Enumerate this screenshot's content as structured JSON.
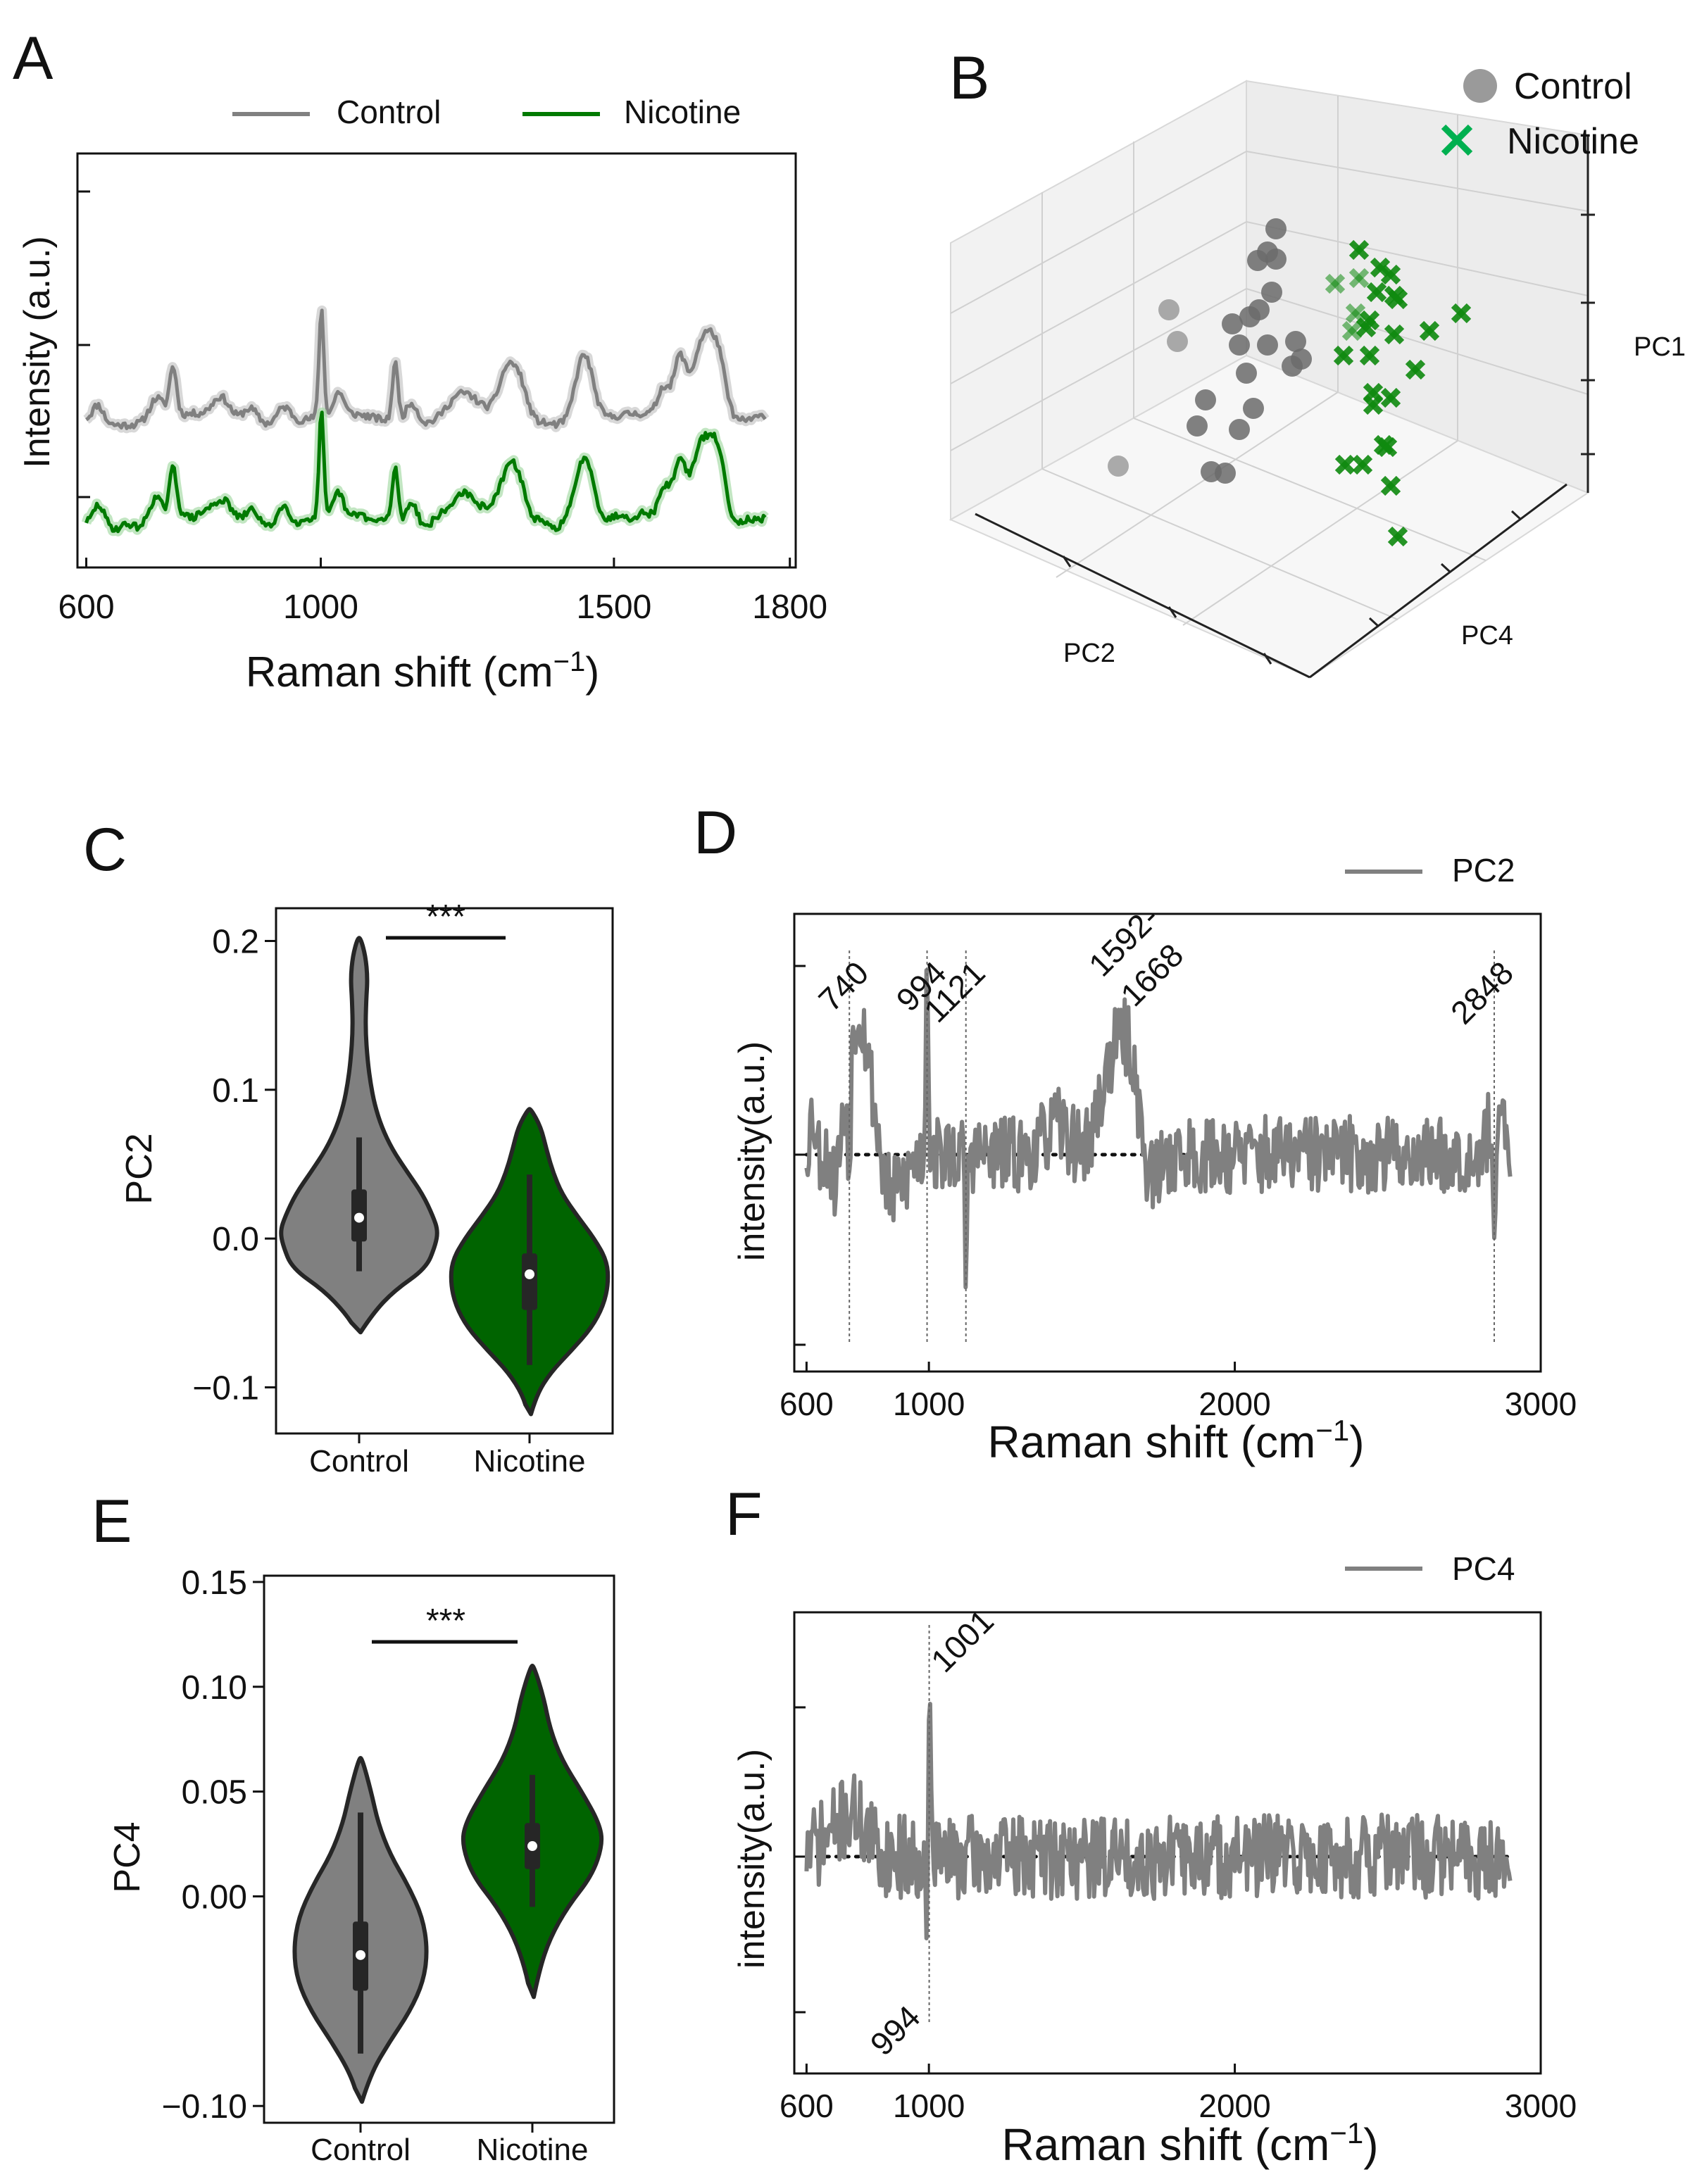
{
  "panel_labels": {
    "a": "A",
    "b": "B",
    "c": "C",
    "d": "D",
    "e": "E",
    "f": "F"
  },
  "colors": {
    "control": "#808080",
    "control_light": "#c8c8c8",
    "nicotine": "#007a00",
    "nicotine_light": "#a8dca8",
    "scatter_control": "#6b6b6b",
    "scatter_nicotine": "#0f8a0f",
    "legend_x": "#00b050",
    "violin_control": "#808080",
    "violin_nicotine": "#006400",
    "loading": "#808080"
  },
  "chart_data": [
    {
      "id": "A",
      "type": "line",
      "title": "",
      "xlabel": "Raman shift (cm",
      "xlabel_sup": "−1",
      "xlabel_close": ")",
      "ylabel": "Intensity (a.u.)",
      "xlim": [
        585,
        1810
      ],
      "xticks": [
        {
          "pos": 600,
          "label": "600"
        },
        {
          "pos": 1000,
          "label": "1000"
        },
        {
          "pos": 1500,
          "label": "1500"
        },
        {
          "pos": 1800,
          "label": "1800"
        }
      ],
      "peaks": [
        [
          620,
          0.35,
          9
        ],
        [
          720,
          0.45,
          12
        ],
        [
          748,
          1.0,
          6
        ],
        [
          830,
          0.4,
          14
        ],
        [
          880,
          0.3,
          12
        ],
        [
          937,
          0.35,
          12
        ],
        [
          1001,
          2.2,
          4
        ],
        [
          1031,
          0.45,
          8
        ],
        [
          1127,
          1.2,
          5
        ],
        [
          1155,
          0.45,
          10
        ],
        [
          1240,
          0.5,
          25
        ],
        [
          1318,
          0.9,
          14
        ],
        [
          1340,
          0.6,
          12
        ],
        [
          1449,
          1.4,
          15
        ],
        [
          1585,
          0.6,
          10
        ],
        [
          1612,
          1.15,
          10
        ],
        [
          1655,
          1.8,
          20
        ],
        [
          1680,
          0.7,
          12
        ]
      ],
      "legend": [
        {
          "label": "Control",
          "color": "#808080"
        },
        {
          "label": "Nicotine",
          "color": "#007a00"
        }
      ],
      "series": [
        {
          "name": "Control",
          "baseline": 0.82,
          "scale": 0.42,
          "seed": 11
        },
        {
          "name": "Nicotine",
          "baseline": -0.05,
          "scale": 0.42,
          "seed": 29
        }
      ]
    },
    {
      "id": "B",
      "type": "scatter",
      "title": "",
      "zlabel": "PC1",
      "xlabel": "PC2",
      "ylabel": "PC4",
      "legend": [
        {
          "label": "Control",
          "marker": "circle"
        },
        {
          "label": "Nicotine",
          "marker": "x"
        }
      ],
      "series": [
        {
          "name": "Control",
          "points": [
            [
              1812,
              325
            ],
            [
              1800,
              358
            ],
            [
              1786,
              370
            ],
            [
              1812,
              368
            ],
            [
              1660,
              440
            ],
            [
              1750,
              460
            ],
            [
              1788,
              440
            ],
            [
              1806,
              415
            ],
            [
              1760,
              490
            ],
            [
              1800,
              490
            ],
            [
              1672,
              485
            ],
            [
              1840,
              485
            ],
            [
              1770,
              530
            ],
            [
              1712,
              568
            ],
            [
              1780,
              580
            ],
            [
              1700,
              605
            ],
            [
              1760,
              610
            ],
            [
              1588,
              662
            ],
            [
              1720,
              670
            ],
            [
              1740,
              672
            ],
            [
              1848,
              510
            ],
            [
              1835,
              520
            ],
            [
              1775,
              450
            ]
          ]
        },
        {
          "name": "Nicotine",
          "points": [
            [
              1930,
              355
            ],
            [
              1960,
              380
            ],
            [
              1975,
              390
            ],
            [
              1980,
              420
            ],
            [
              1955,
              415
            ],
            [
              1930,
              395
            ],
            [
              1896,
              403
            ],
            [
              1925,
              445
            ],
            [
              1920,
              470
            ],
            [
              1945,
              505
            ],
            [
              1980,
              475
            ],
            [
              2010,
              525
            ],
            [
              1985,
              425
            ],
            [
              1945,
              455
            ],
            [
              1940,
              465
            ],
            [
              2030,
              470
            ],
            [
              2075,
              445
            ],
            [
              1950,
              558
            ],
            [
              1950,
              575
            ],
            [
              1965,
              632
            ],
            [
              1935,
              660
            ],
            [
              1910,
              660
            ],
            [
              1970,
              635
            ],
            [
              1975,
              690
            ],
            [
              1985,
              762
            ],
            [
              1908,
              505
            ],
            [
              1975,
              565
            ]
          ]
        }
      ]
    },
    {
      "id": "C",
      "type": "violin",
      "ylabel": "PC2",
      "ylim": [
        -0.131,
        0.222
      ],
      "yticks": [
        -0.1,
        0.0,
        0.1,
        0.2
      ],
      "ytick_labels": [
        "−0.1",
        "0.0",
        "0.1",
        "0.2"
      ],
      "categories": [
        "Control",
        "Nicotine"
      ],
      "significance": "***",
      "violins": [
        {
          "name": "Control",
          "median": 0.014,
          "q1": -0.002,
          "q3": 0.033,
          "wlo": -0.022,
          "whi": 0.068,
          "profile": [
            [
              -0.063,
              2
            ],
            [
              -0.05,
              20
            ],
            [
              -0.035,
              50
            ],
            [
              -0.02,
              95
            ],
            [
              -0.005,
              108
            ],
            [
              0.005,
              112
            ],
            [
              0.015,
              105
            ],
            [
              0.03,
              90
            ],
            [
              0.045,
              68
            ],
            [
              0.06,
              47
            ],
            [
              0.075,
              32
            ],
            [
              0.09,
              22
            ],
            [
              0.105,
              16
            ],
            [
              0.12,
              12
            ],
            [
              0.14,
              9
            ],
            [
              0.16,
              10
            ],
            [
              0.175,
              12
            ],
            [
              0.19,
              9
            ],
            [
              0.202,
              2
            ]
          ]
        },
        {
          "name": "Nicotine",
          "median": -0.024,
          "q1": -0.048,
          "q3": -0.01,
          "wlo": -0.085,
          "whi": 0.043,
          "profile": [
            [
              -0.118,
              2
            ],
            [
              -0.105,
              10
            ],
            [
              -0.09,
              30
            ],
            [
              -0.075,
              60
            ],
            [
              -0.06,
              88
            ],
            [
              -0.045,
              105
            ],
            [
              -0.03,
              112
            ],
            [
              -0.015,
              110
            ],
            [
              0.0,
              92
            ],
            [
              0.015,
              68
            ],
            [
              0.03,
              46
            ],
            [
              0.045,
              33
            ],
            [
              0.06,
              24
            ],
            [
              0.075,
              16
            ],
            [
              0.087,
              2
            ]
          ]
        }
      ]
    },
    {
      "id": "D",
      "type": "line",
      "xlabel": "Raman shift (cm",
      "xlabel_sup": "−1",
      "xlabel_close": ")",
      "ylabel": "intensity(a.u.)",
      "xlim": [
        560,
        3000
      ],
      "xticks": [
        {
          "pos": 600,
          "label": "600"
        },
        {
          "pos": 1000,
          "label": "1000"
        },
        {
          "pos": 2000,
          "label": "2000"
        },
        {
          "pos": 3000,
          "label": "3000"
        }
      ],
      "legend": [
        {
          "label": "PC2",
          "color": "#808080"
        }
      ],
      "annotations": [
        {
          "x": 740,
          "label": "740"
        },
        {
          "x": 994,
          "label": "994"
        },
        {
          "x": 1121,
          "label": "1121"
        },
        {
          "x": 2848,
          "label": "2848"
        }
      ],
      "annotation_block": {
        "x": 1640,
        "lines": [
          "1592-",
          "1668"
        ]
      },
      "series": [
        {
          "name": "PC2",
          "seed": 53
        }
      ]
    },
    {
      "id": "E",
      "type": "violin",
      "ylabel": "PC4",
      "ylim": [
        -0.108,
        0.153
      ],
      "yticks": [
        -0.1,
        0.0,
        0.05,
        0.1,
        0.15
      ],
      "ytick_labels": [
        "−0.10",
        "0.00",
        "0.05",
        "0.10",
        "0.15"
      ],
      "categories": [
        "Control",
        "Nicotine"
      ],
      "significance": "***",
      "violins": [
        {
          "name": "Control",
          "median": -0.028,
          "q1": -0.045,
          "q3": -0.012,
          "wlo": -0.075,
          "whi": 0.04,
          "profile": [
            [
              -0.098,
              2
            ],
            [
              -0.085,
              14
            ],
            [
              -0.07,
              40
            ],
            [
              -0.055,
              70
            ],
            [
              -0.04,
              90
            ],
            [
              -0.025,
              95
            ],
            [
              -0.01,
              88
            ],
            [
              0.005,
              68
            ],
            [
              0.02,
              42
            ],
            [
              0.035,
              25
            ],
            [
              0.05,
              15
            ],
            [
              0.066,
              2
            ]
          ]
        },
        {
          "name": "Nicotine",
          "median": 0.024,
          "q1": 0.013,
          "q3": 0.035,
          "wlo": -0.005,
          "whi": 0.058,
          "profile": [
            [
              -0.048,
              2
            ],
            [
              -0.035,
              10
            ],
            [
              -0.02,
              25
            ],
            [
              -0.005,
              50
            ],
            [
              0.01,
              85
            ],
            [
              0.025,
              100
            ],
            [
              0.035,
              95
            ],
            [
              0.05,
              70
            ],
            [
              0.065,
              42
            ],
            [
              0.08,
              25
            ],
            [
              0.095,
              16
            ],
            [
              0.11,
              2
            ]
          ]
        }
      ]
    },
    {
      "id": "F",
      "type": "line",
      "xlabel": "Raman shift (cm",
      "xlabel_sup": "−1",
      "xlabel_close": ")",
      "ylabel": "intensity(a.u.)",
      "xlim": [
        560,
        3000
      ],
      "xticks": [
        {
          "pos": 600,
          "label": "600"
        },
        {
          "pos": 1000,
          "label": "1000"
        },
        {
          "pos": 2000,
          "label": "2000"
        },
        {
          "pos": 3000,
          "label": "3000"
        }
      ],
      "legend": [
        {
          "label": "PC4",
          "color": "#808080"
        }
      ],
      "annotations": [
        {
          "x": 1001,
          "label": "1001"
        },
        {
          "x": 994,
          "label": "994"
        }
      ],
      "series": [
        {
          "name": "PC4",
          "seed": 71
        }
      ]
    }
  ]
}
